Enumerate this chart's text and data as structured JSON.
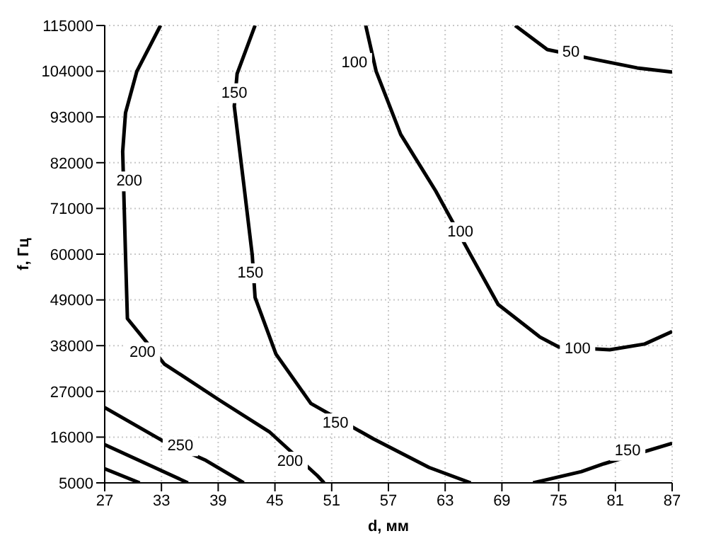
{
  "chart_data": {
    "type": "line",
    "xlabel": "d, мм",
    "ylabel": "f, Гц",
    "xlim": [
      27,
      87
    ],
    "xticks": [
      27,
      33,
      39,
      45,
      51,
      57,
      63,
      69,
      75,
      81,
      87
    ],
    "ylim": [
      5000,
      115000
    ],
    "yticks": [
      5000,
      16000,
      27000,
      38000,
      49000,
      60000,
      71000,
      82000,
      93000,
      104000,
      115000
    ],
    "grid": true,
    "marker": "none",
    "line_style": "solid",
    "series": [
      {
        "color": "#000000",
        "x": [
          70.4,
          73.8,
          78.9,
          83.3,
          87
        ],
        "values": [
          115000,
          109200,
          106800,
          104800,
          103800
        ]
      },
      {
        "color": "#000000",
        "x": [
          54.6,
          55.7,
          58.3,
          62.0,
          65.7,
          68.6,
          73.0,
          75.0,
          80.4,
          84.1,
          87
        ],
        "values": [
          115000,
          104000,
          88800,
          75200,
          59800,
          47900,
          40100,
          37700,
          37000,
          38400,
          41400
        ]
      },
      {
        "color": "#000000",
        "x": [
          42.9,
          41.0,
          40.7,
          41.7,
          42.6,
          42.9,
          45.1,
          48.8,
          55.4,
          61.3,
          65.7
        ],
        "values": [
          115000,
          103400,
          95600,
          76900,
          59800,
          49600,
          36000,
          24100,
          15600,
          8700,
          5000
        ]
      },
      {
        "color": "#000000",
        "x": [
          72.3,
          77.4,
          79.8,
          87
        ],
        "values": [
          5000,
          7700,
          9600,
          14500
        ]
      },
      {
        "color": "#000000",
        "x": [
          32.9,
          30.4,
          29.2,
          28.9,
          29.2,
          29.4,
          33.3,
          39.2,
          44.4,
          49.5,
          50.2
        ],
        "values": [
          115000,
          104000,
          94000,
          84700,
          59800,
          44500,
          33600,
          24800,
          17300,
          6700,
          5000
        ]
      },
      {
        "color": "#000000",
        "x": [
          27,
          33.3,
          37.7,
          41.7
        ],
        "values": [
          23100,
          14900,
          10400,
          5000
        ]
      },
      {
        "color": "#000000",
        "x": [
          27,
          35.8
        ],
        "values": [
          14200,
          5000
        ]
      },
      {
        "color": "#000000",
        "x": [
          27,
          30.7
        ],
        "values": [
          8400,
          5000
        ]
      }
    ],
    "annotations": [
      {
        "text": "50",
        "x": 76.3,
        "y": 108500
      },
      {
        "text": "100",
        "x": 53.4,
        "y": 106000
      },
      {
        "text": "100",
        "x": 64.6,
        "y": 65300
      },
      {
        "text": "100",
        "x": 77.0,
        "y": 37200
      },
      {
        "text": "150",
        "x": 40.7,
        "y": 98700
      },
      {
        "text": "150",
        "x": 42.4,
        "y": 55400
      },
      {
        "text": "150",
        "x": 51.4,
        "y": 19300
      },
      {
        "text": "150",
        "x": 82.3,
        "y": 12700
      },
      {
        "text": "200",
        "x": 29.6,
        "y": 77500
      },
      {
        "text": "200",
        "x": 31.0,
        "y": 36400
      },
      {
        "text": "200",
        "x": 46.6,
        "y": 10100
      },
      {
        "text": "250",
        "x": 35.0,
        "y": 13800
      }
    ]
  }
}
